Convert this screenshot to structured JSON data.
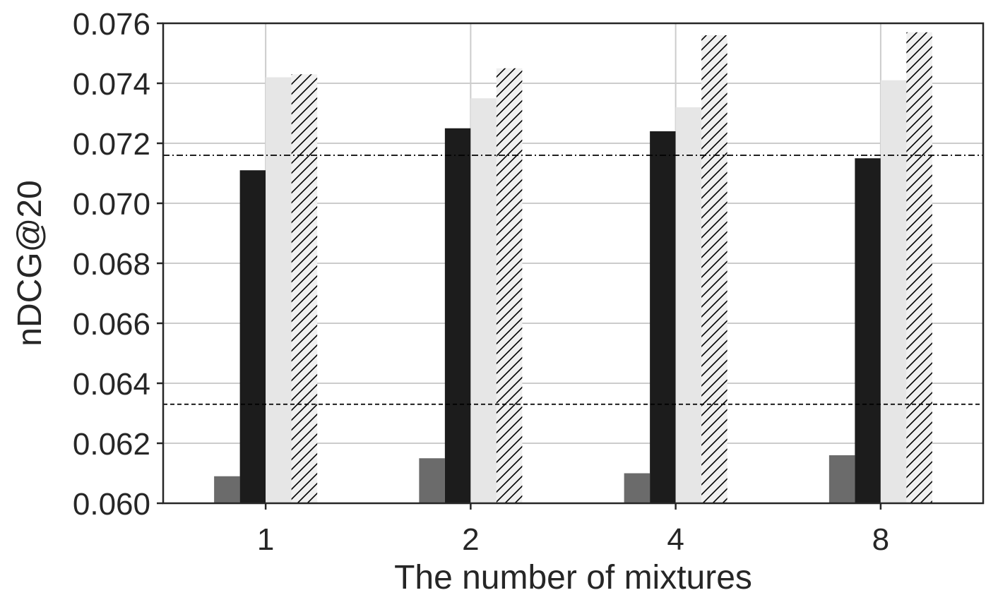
{
  "chart_data": {
    "type": "bar",
    "xlabel": "The number of mixtures",
    "ylabel": "nDCG@20",
    "categories": [
      "1",
      "2",
      "4",
      "8"
    ],
    "ylim": [
      0.06,
      0.076
    ],
    "yticks": [
      "0.060",
      "0.062",
      "0.064",
      "0.066",
      "0.068",
      "0.070",
      "0.072",
      "0.074",
      "0.076"
    ],
    "grid": true,
    "series": [
      {
        "values": [
          0.0609,
          0.0615,
          0.061,
          0.0616
        ],
        "color": "#6b6b6b",
        "hatch": false
      },
      {
        "values": [
          0.0711,
          0.0725,
          0.0724,
          0.0715
        ],
        "color": "#1c1c1c",
        "hatch": false
      },
      {
        "values": [
          0.0742,
          0.0735,
          0.0732,
          0.0741
        ],
        "color": "#e6e6e6",
        "hatch": false
      },
      {
        "values": [
          0.0743,
          0.0745,
          0.0756,
          0.0757
        ],
        "color": "#f0f0f0",
        "hatch": true
      }
    ],
    "reference_lines": [
      {
        "value": 0.0716,
        "style": "dashdot",
        "color": "#000000"
      },
      {
        "value": 0.0633,
        "style": "dashed",
        "color": "#000000"
      }
    ]
  }
}
